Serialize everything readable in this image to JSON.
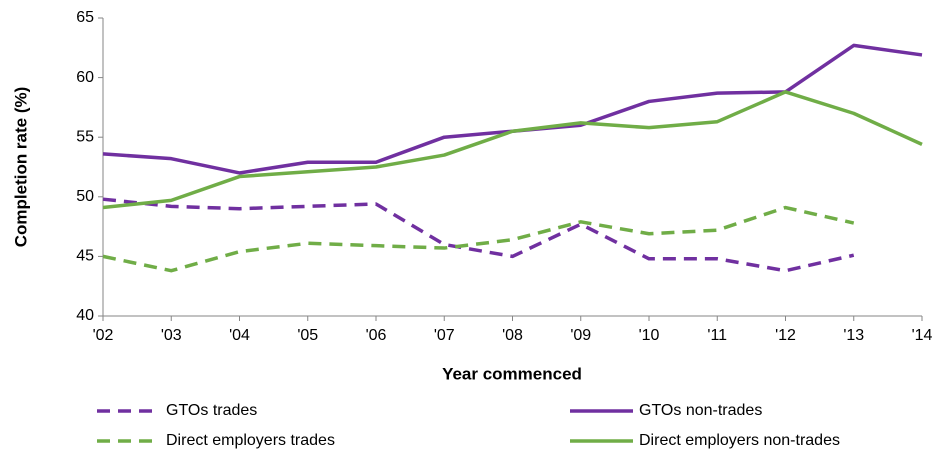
{
  "chart_data": {
    "type": "line",
    "x_label": "Year commenced",
    "y_label": "Completion rate (%)",
    "categories": [
      "'02",
      "'03",
      "'04",
      "'05",
      "'06",
      "'07",
      "'08",
      "'09",
      "'10",
      "'11",
      "'12",
      "'13",
      "'14"
    ],
    "series": [
      {
        "name": "GTOs trades",
        "color": "#7030a0",
        "dashed": true,
        "values": [
          49.8,
          49.2,
          49.0,
          49.2,
          49.4,
          46.0,
          45.0,
          47.7,
          44.8,
          44.8,
          43.8,
          45.1,
          null
        ]
      },
      {
        "name": "GTOs non-trades",
        "color": "#7030a0",
        "dashed": false,
        "values": [
          53.6,
          53.2,
          52.0,
          52.9,
          52.9,
          55.0,
          55.5,
          56.0,
          58.0,
          58.7,
          58.8,
          62.7,
          61.9
        ]
      },
      {
        "name": "Direct employers trades",
        "color": "#70ad47",
        "dashed": true,
        "values": [
          45.0,
          43.8,
          45.4,
          46.1,
          45.9,
          45.7,
          46.4,
          47.9,
          46.9,
          47.2,
          49.1,
          47.8,
          null
        ]
      },
      {
        "name": "Direct employers non-trades",
        "color": "#70ad47",
        "dashed": false,
        "values": [
          49.1,
          49.7,
          51.7,
          52.1,
          52.5,
          53.5,
          55.5,
          56.2,
          55.8,
          56.3,
          58.8,
          57.0,
          54.4
        ]
      }
    ],
    "ylim": [
      40,
      65
    ],
    "yticks": [
      40,
      45,
      50,
      55,
      60,
      65
    ],
    "grid": false
  }
}
